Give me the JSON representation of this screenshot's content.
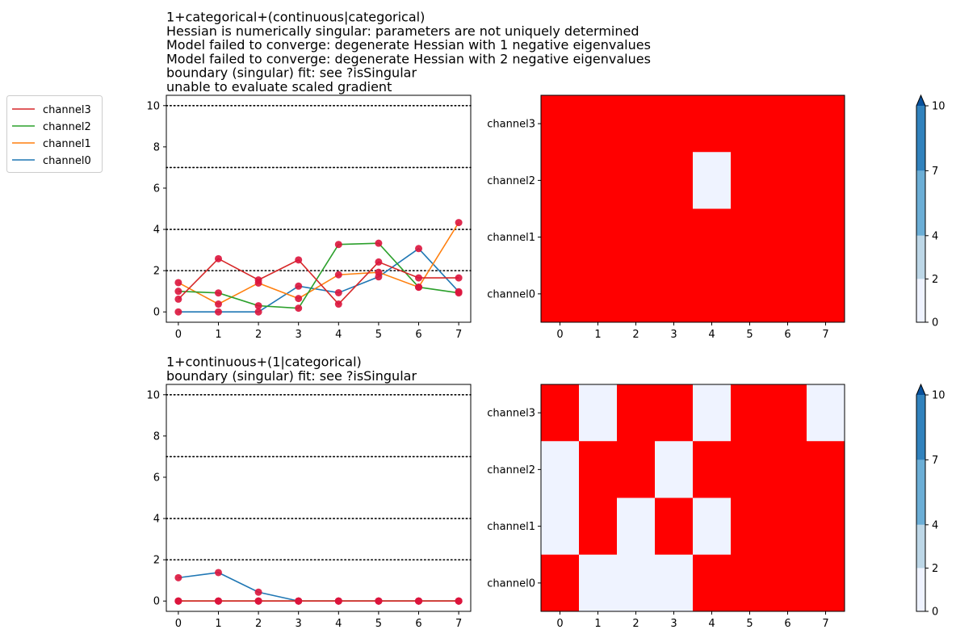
{
  "chart_data": [
    {
      "type": "line",
      "title_lines": [
        "1+categorical+(continuous|categorical)",
        "Hessian is numerically singular: parameters are not uniquely determined",
        "Model failed to converge: degenerate  Hessian with 1 negative eigenvalues",
        "Model failed to converge: degenerate  Hessian with 2 negative eigenvalues",
        "boundary (singular) fit: see ?isSingular",
        "unable to evaluate scaled gradient"
      ],
      "x": [
        0,
        1,
        2,
        3,
        4,
        5,
        6,
        7
      ],
      "xlim": [
        -0.3,
        7.3
      ],
      "ylim": [
        -0.5,
        10.5
      ],
      "yticks": [
        0,
        2,
        4,
        6,
        8,
        10
      ],
      "thresholds": [
        2,
        4,
        7,
        10
      ],
      "series": [
        {
          "name": "channel0",
          "color": "#1f77b4",
          "values": [
            0.0,
            0.0,
            0.0,
            1.25,
            0.93,
            1.7,
            3.07,
            0.98
          ]
        },
        {
          "name": "channel1",
          "color": "#ff7f0e",
          "values": [
            1.42,
            0.38,
            1.4,
            0.65,
            1.8,
            1.92,
            1.2,
            4.33
          ]
        },
        {
          "name": "channel2",
          "color": "#2ca02c",
          "values": [
            1.0,
            0.92,
            0.3,
            0.18,
            3.27,
            3.33,
            1.2,
            0.92
          ]
        },
        {
          "name": "channel3",
          "color": "#d62728",
          "values": [
            0.62,
            2.58,
            1.55,
            2.52,
            0.38,
            2.42,
            1.65,
            1.65
          ]
        }
      ],
      "marker_color": "#dc143c"
    },
    {
      "type": "heatmap",
      "rows": [
        "channel3",
        "channel2",
        "channel1",
        "channel0"
      ],
      "columns": [
        0,
        1,
        2,
        3,
        4,
        5,
        6,
        7
      ],
      "cells": [
        [
          "red",
          "red",
          "red",
          "red",
          "red",
          "red",
          "red",
          "red"
        ],
        [
          "red",
          "red",
          "red",
          "red",
          "1",
          "red",
          "red",
          "red"
        ],
        [
          "red",
          "red",
          "red",
          "red",
          "red",
          "red",
          "red",
          "red"
        ],
        [
          "red",
          "red",
          "red",
          "red",
          "red",
          "red",
          "red",
          "red"
        ]
      ],
      "colorbar": {
        "ticks": [
          0,
          2,
          4,
          7,
          10
        ],
        "extend": "max"
      }
    },
    {
      "type": "line",
      "title_lines": [
        "1+continuous+(1|categorical)",
        "boundary (singular) fit: see ?isSingular"
      ],
      "x": [
        0,
        1,
        2,
        3,
        4,
        5,
        6,
        7
      ],
      "xlim": [
        -0.3,
        7.3
      ],
      "ylim": [
        -0.5,
        10.5
      ],
      "yticks": [
        0,
        2,
        4,
        6,
        8,
        10
      ],
      "thresholds": [
        2,
        4,
        7,
        10
      ],
      "series": [
        {
          "name": "channel0",
          "color": "#1f77b4",
          "values": [
            1.13,
            1.38,
            0.43,
            0.0,
            0.0,
            0.0,
            0.0,
            0.0
          ]
        },
        {
          "name": "channel1",
          "color": "#ff7f0e",
          "values": [
            0.0,
            0.0,
            0.0,
            0.0,
            0.0,
            0.0,
            0.0,
            0.0
          ]
        },
        {
          "name": "channel2",
          "color": "#2ca02c",
          "values": [
            0.0,
            0.0,
            0.0,
            0.0,
            0.0,
            0.0,
            0.0,
            0.0
          ]
        },
        {
          "name": "channel3",
          "color": "#d62728",
          "values": [
            0.0,
            0.0,
            0.0,
            0.0,
            0.0,
            0.0,
            0.0,
            0.0
          ]
        }
      ],
      "marker_color": "#dc143c"
    },
    {
      "type": "heatmap",
      "rows": [
        "channel3",
        "channel2",
        "channel1",
        "channel0"
      ],
      "columns": [
        0,
        1,
        2,
        3,
        4,
        5,
        6,
        7
      ],
      "cells": [
        [
          "red",
          "0",
          "red",
          "red",
          "0",
          "red",
          "red",
          "0"
        ],
        [
          "0",
          "red",
          "red",
          "0",
          "red",
          "red",
          "red",
          "red"
        ],
        [
          "0",
          "red",
          "0",
          "red",
          "0",
          "red",
          "red",
          "red"
        ],
        [
          "red",
          "0",
          "0",
          "0",
          "red",
          "red",
          "red",
          "red"
        ]
      ],
      "colorbar": {
        "ticks": [
          0,
          2,
          4,
          7,
          10
        ],
        "extend": "max"
      }
    }
  ],
  "legend": {
    "entries": [
      {
        "name": "channel3",
        "color": "#d62728"
      },
      {
        "name": "channel2",
        "color": "#2ca02c"
      },
      {
        "name": "channel1",
        "color": "#ff7f0e"
      },
      {
        "name": "channel0",
        "color": "#1f77b4"
      }
    ],
    "placement": "top-left outside"
  },
  "colorscale": {
    "bins": [
      {
        "from": 0,
        "to": 2,
        "color": "#eff3ff"
      },
      {
        "from": 2,
        "to": 4,
        "color": "#bdd7e7"
      },
      {
        "from": 4,
        "to": 7,
        "color": "#6baed6"
      },
      {
        "from": 7,
        "to": 10,
        "color": "#3182bd"
      }
    ],
    "over_color": "#08519c",
    "flag_color": "#ff0000"
  }
}
